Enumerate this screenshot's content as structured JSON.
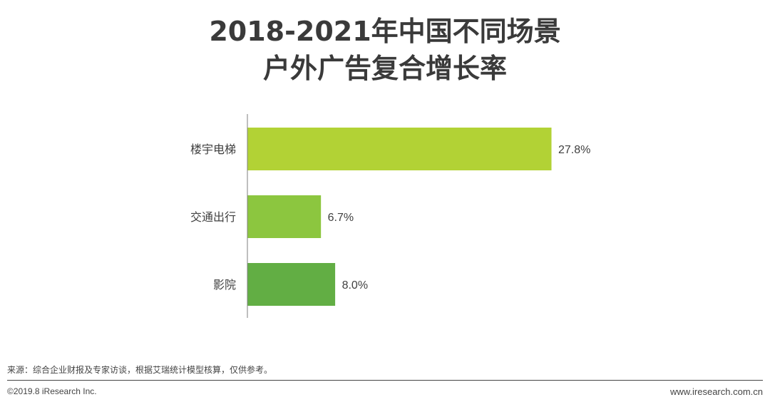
{
  "chart_data": {
    "type": "bar",
    "orientation": "horizontal",
    "title": "2018-2021年中国不同场景户外广告复合增长率",
    "title_lines": [
      "2018-2021年中国不同场景",
      "户外广告复合增长率"
    ],
    "categories": [
      "楼宇电梯",
      "交通出行",
      "影院"
    ],
    "values": [
      27.8,
      6.7,
      8.0
    ],
    "data_labels": [
      "27.8%",
      "6.7%",
      "8.0%"
    ],
    "bar_colors": [
      "#b2d235",
      "#8cc63f",
      "#62ae44"
    ],
    "xlim": [
      0,
      35
    ],
    "xlabel": "",
    "ylabel": "",
    "grid": false,
    "legend": "none"
  },
  "source": "来源：综合企业财报及专家访谈，根据艾瑞统计模型核算，仅供参考。",
  "copyright": "©2019.8 iResearch Inc.",
  "website": "www.iresearch.com.cn"
}
